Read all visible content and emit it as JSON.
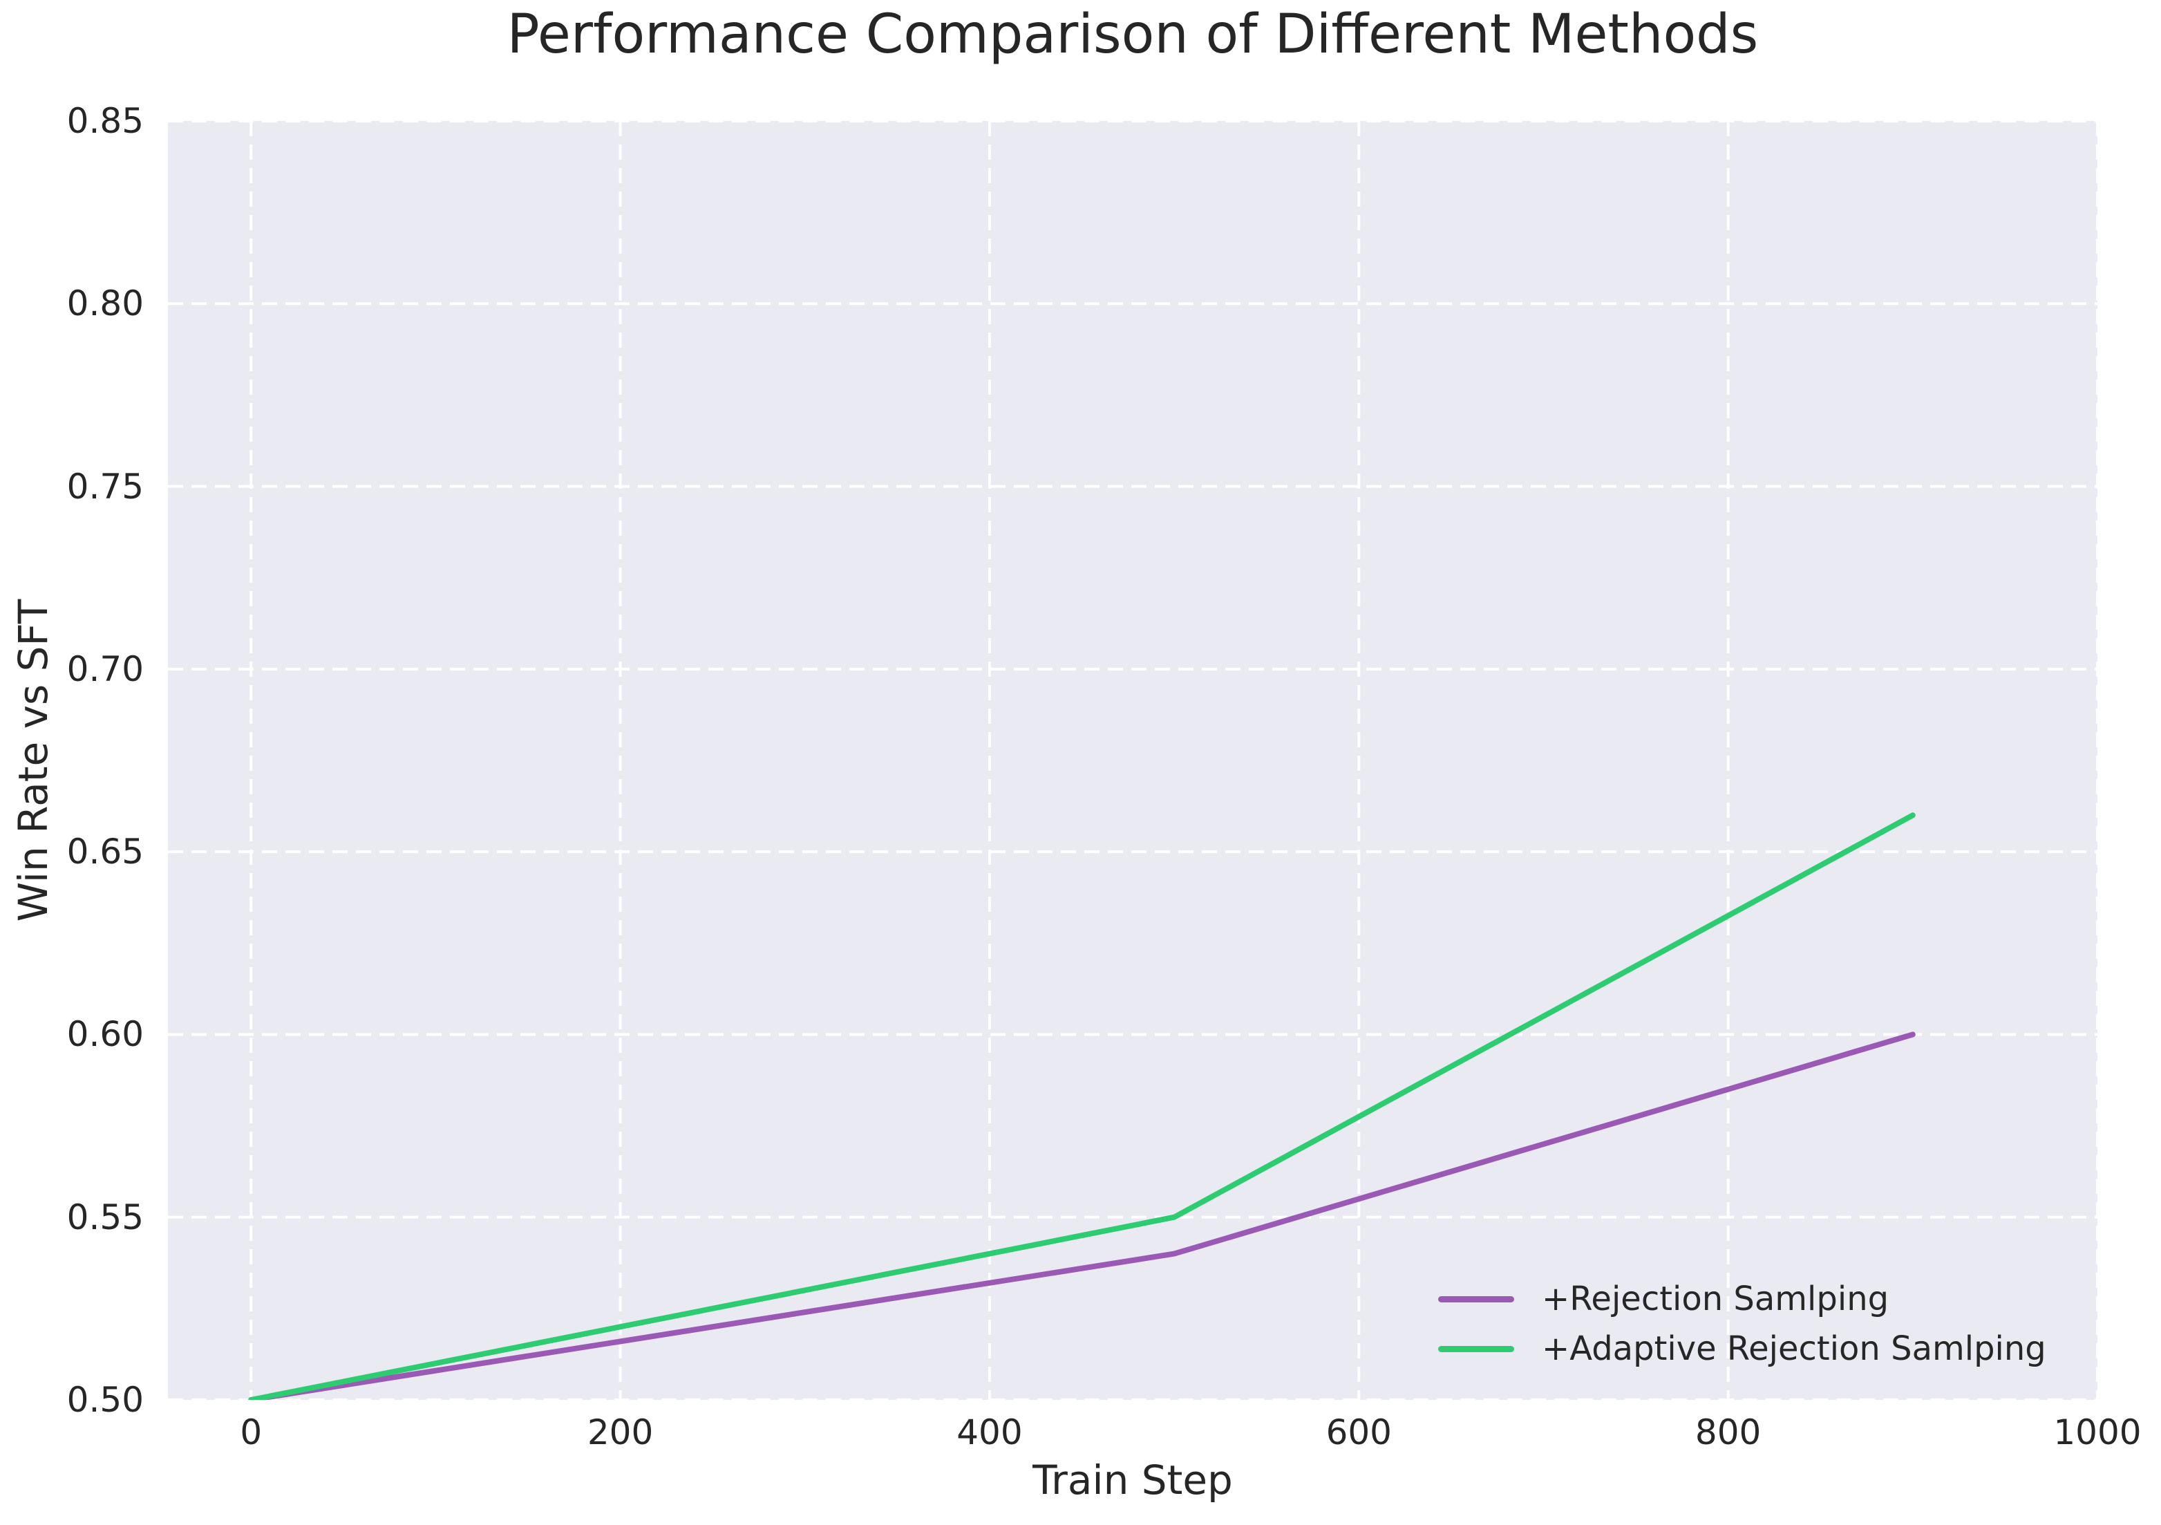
{
  "title": "Performance Comparison of Different Methods",
  "colors": {
    "figure_background": "#ffffff",
    "plot_background": "#eaeaf2",
    "grid": "#ffffff",
    "text": "#262626",
    "series_purple": "#9b59b6",
    "series_green": "#2ecc71"
  },
  "chart_data": {
    "type": "line",
    "title": "Performance Comparison of Different Methods",
    "xlabel": "Train Step",
    "ylabel": "Win Rate vs SFT",
    "x": [
      0,
      500,
      900
    ],
    "series": [
      {
        "name": "+Rejection Samlping",
        "color": "#9b59b6",
        "values": [
          0.5,
          0.54,
          0.6
        ]
      },
      {
        "name": "+Adaptive Rejection Samlping",
        "color": "#2ecc71",
        "values": [
          0.5,
          0.55,
          0.66
        ]
      }
    ],
    "xlim": [
      -45,
      1000
    ],
    "ylim": [
      0.5,
      0.85
    ],
    "xticks": [
      0,
      200,
      400,
      600,
      800,
      1000
    ],
    "yticks": [
      0.5,
      0.55,
      0.6,
      0.65,
      0.7,
      0.75,
      0.8,
      0.85
    ],
    "grid": true,
    "grid_style": "dashed",
    "line_width": 8,
    "legend_position": "lower right"
  }
}
